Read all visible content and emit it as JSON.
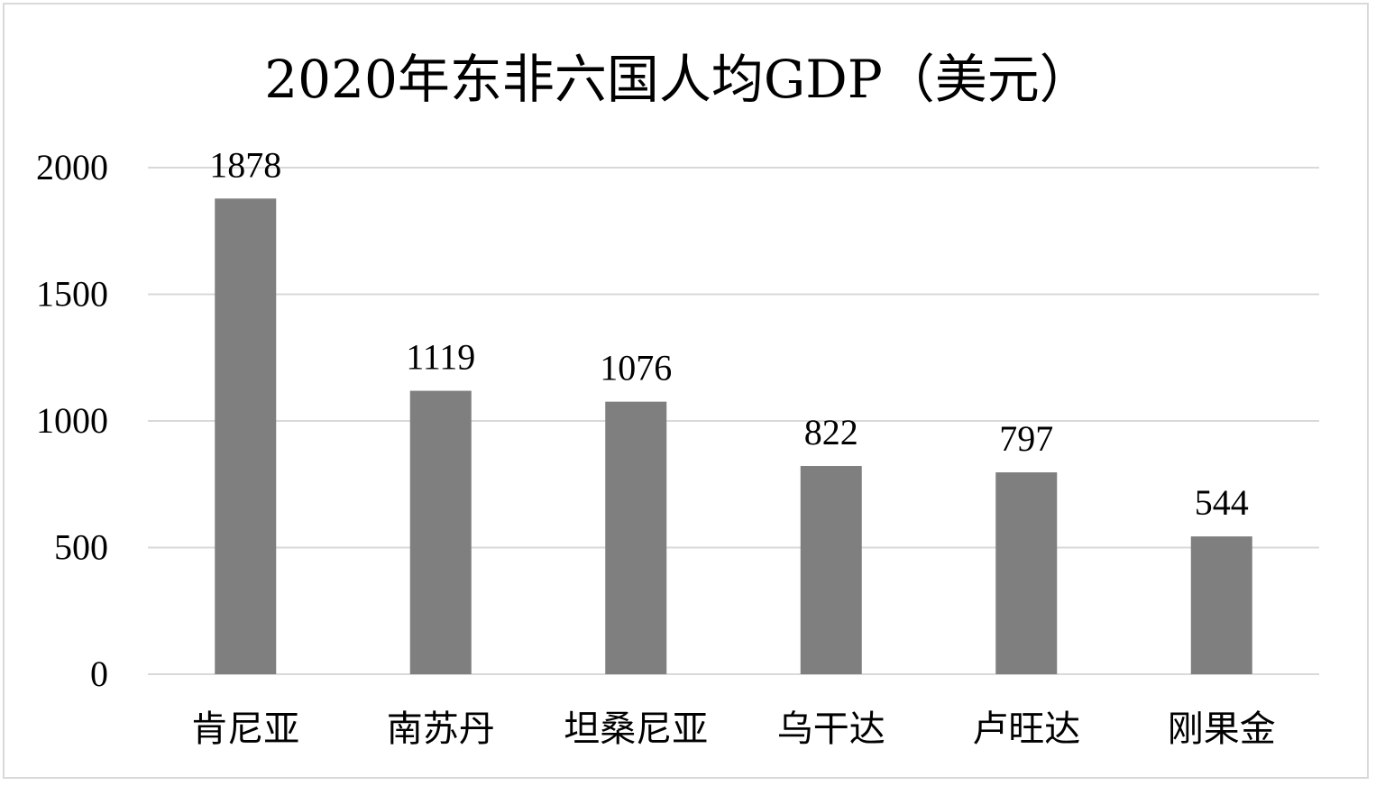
{
  "chart_data": {
    "type": "bar",
    "title": "2020年东非六国人均GDP（美元）",
    "xlabel": "",
    "ylabel": "",
    "categories": [
      "肯尼亚",
      "南苏丹",
      "坦桑尼亚",
      "乌干达",
      "卢旺达",
      "刚果金"
    ],
    "values": [
      1878,
      1119,
      1076,
      822,
      797,
      544
    ],
    "data_labels": [
      "1878",
      "1119",
      "1076",
      "822",
      "797",
      "544"
    ],
    "ylim": [
      0,
      2000
    ],
    "yticks": [
      0,
      500,
      1000,
      1500,
      2000
    ],
    "ytick_labels": [
      "0",
      "500",
      "1000",
      "1500",
      "2000"
    ],
    "grid": true,
    "legend": "none",
    "colors": {
      "bar": "#7f7f7f",
      "grid": "#d9d9d9",
      "frame": "#d9d9d9",
      "text": "#000000"
    }
  }
}
